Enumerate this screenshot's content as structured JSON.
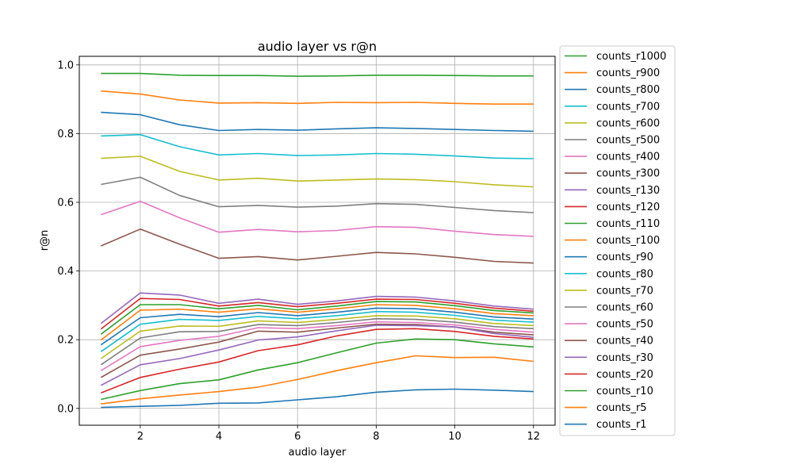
{
  "chart_data": {
    "type": "line",
    "title": "audio layer vs r@n",
    "xlabel": "audio layer",
    "ylabel": "r@n",
    "xlim": [
      0.45,
      12.55
    ],
    "ylim": [
      -0.049,
      1.025
    ],
    "xticks": [
      2,
      4,
      6,
      8,
      10,
      12
    ],
    "xtick_labels": [
      "2",
      "4",
      "6",
      "8",
      "10",
      "12"
    ],
    "yticks": [
      0.0,
      0.2,
      0.4,
      0.6,
      0.8,
      1.0
    ],
    "ytick_labels": [
      "0.0",
      "0.2",
      "0.4",
      "0.6",
      "0.8",
      "1.0"
    ],
    "grid": true,
    "legend_position": "outside-right",
    "x": [
      1,
      2,
      3,
      4,
      5,
      6,
      7,
      8,
      9,
      10,
      11,
      12
    ],
    "series": [
      {
        "name": "counts_r1000",
        "color": "#2ca02c",
        "values": [
          0.975,
          0.975,
          0.97,
          0.969,
          0.969,
          0.967,
          0.968,
          0.97,
          0.97,
          0.969,
          0.968,
          0.968
        ]
      },
      {
        "name": "counts_r900",
        "color": "#ff7f0e",
        "values": [
          0.924,
          0.915,
          0.898,
          0.889,
          0.89,
          0.888,
          0.891,
          0.89,
          0.891,
          0.888,
          0.886,
          0.886
        ]
      },
      {
        "name": "counts_r800",
        "color": "#1f77b4",
        "values": [
          0.862,
          0.855,
          0.826,
          0.809,
          0.812,
          0.81,
          0.814,
          0.817,
          0.815,
          0.812,
          0.809,
          0.807
        ]
      },
      {
        "name": "counts_r700",
        "color": "#17becf",
        "values": [
          0.793,
          0.797,
          0.762,
          0.738,
          0.742,
          0.736,
          0.738,
          0.742,
          0.74,
          0.735,
          0.729,
          0.727
        ]
      },
      {
        "name": "counts_r600",
        "color": "#bcbd22",
        "values": [
          0.728,
          0.734,
          0.69,
          0.665,
          0.67,
          0.662,
          0.665,
          0.668,
          0.666,
          0.66,
          0.651,
          0.645
        ]
      },
      {
        "name": "counts_r500",
        "color": "#7f7f7f",
        "values": [
          0.652,
          0.673,
          0.62,
          0.587,
          0.591,
          0.586,
          0.589,
          0.596,
          0.594,
          0.585,
          0.576,
          0.57
        ]
      },
      {
        "name": "counts_r400",
        "color": "#e377c2",
        "values": [
          0.564,
          0.603,
          0.555,
          0.513,
          0.521,
          0.514,
          0.518,
          0.529,
          0.527,
          0.516,
          0.506,
          0.501
        ]
      },
      {
        "name": "counts_r300",
        "color": "#8c564b",
        "values": [
          0.473,
          0.522,
          0.478,
          0.437,
          0.442,
          0.432,
          0.443,
          0.454,
          0.45,
          0.44,
          0.428,
          0.423
        ]
      },
      {
        "name": "counts_r130",
        "color": "#9467bd",
        "values": [
          0.247,
          0.336,
          0.33,
          0.306,
          0.318,
          0.303,
          0.313,
          0.326,
          0.324,
          0.313,
          0.298,
          0.289
        ]
      },
      {
        "name": "counts_r120",
        "color": "#d62728",
        "values": [
          0.231,
          0.32,
          0.317,
          0.298,
          0.308,
          0.296,
          0.306,
          0.318,
          0.317,
          0.306,
          0.292,
          0.283
        ]
      },
      {
        "name": "counts_r110",
        "color": "#2ca02c",
        "values": [
          0.216,
          0.302,
          0.302,
          0.29,
          0.3,
          0.287,
          0.298,
          0.311,
          0.31,
          0.299,
          0.285,
          0.278
        ]
      },
      {
        "name": "counts_r100",
        "color": "#ff7f0e",
        "values": [
          0.199,
          0.286,
          0.289,
          0.28,
          0.29,
          0.28,
          0.29,
          0.302,
          0.3,
          0.29,
          0.276,
          0.27
        ]
      },
      {
        "name": "counts_r90",
        "color": "#1f77b4",
        "values": [
          0.185,
          0.264,
          0.274,
          0.267,
          0.279,
          0.27,
          0.28,
          0.292,
          0.29,
          0.28,
          0.266,
          0.26
        ]
      },
      {
        "name": "counts_r80",
        "color": "#17becf",
        "values": [
          0.165,
          0.245,
          0.259,
          0.256,
          0.268,
          0.261,
          0.27,
          0.282,
          0.28,
          0.271,
          0.257,
          0.251
        ]
      },
      {
        "name": "counts_r70",
        "color": "#bcbd22",
        "values": [
          0.145,
          0.225,
          0.24,
          0.239,
          0.255,
          0.25,
          0.259,
          0.27,
          0.269,
          0.261,
          0.247,
          0.241
        ]
      },
      {
        "name": "counts_r60",
        "color": "#7f7f7f",
        "values": [
          0.127,
          0.205,
          0.223,
          0.224,
          0.244,
          0.241,
          0.25,
          0.261,
          0.259,
          0.251,
          0.238,
          0.232
        ]
      },
      {
        "name": "counts_r50",
        "color": "#e377c2",
        "values": [
          0.11,
          0.18,
          0.198,
          0.21,
          0.235,
          0.232,
          0.241,
          0.252,
          0.25,
          0.243,
          0.23,
          0.222
        ]
      },
      {
        "name": "counts_r40",
        "color": "#8c564b",
        "values": [
          0.09,
          0.155,
          0.173,
          0.193,
          0.225,
          0.222,
          0.234,
          0.245,
          0.244,
          0.237,
          0.222,
          0.214
        ]
      },
      {
        "name": "counts_r30",
        "color": "#9467bd",
        "values": [
          0.067,
          0.127,
          0.145,
          0.17,
          0.199,
          0.208,
          0.226,
          0.242,
          0.241,
          0.237,
          0.218,
          0.207
        ]
      },
      {
        "name": "counts_r20",
        "color": "#d62728",
        "values": [
          0.045,
          0.09,
          0.114,
          0.135,
          0.168,
          0.185,
          0.211,
          0.23,
          0.232,
          0.224,
          0.21,
          0.202
        ]
      },
      {
        "name": "counts_r10",
        "color": "#2ca02c",
        "values": [
          0.026,
          0.052,
          0.072,
          0.083,
          0.112,
          0.133,
          0.162,
          0.19,
          0.202,
          0.2,
          0.188,
          0.179
        ]
      },
      {
        "name": "counts_r5",
        "color": "#ff7f0e",
        "values": [
          0.013,
          0.028,
          0.039,
          0.049,
          0.062,
          0.084,
          0.11,
          0.133,
          0.153,
          0.148,
          0.149,
          0.137
        ]
      },
      {
        "name": "counts_r1",
        "color": "#1f77b4",
        "values": [
          0.003,
          0.006,
          0.009,
          0.015,
          0.016,
          0.025,
          0.034,
          0.047,
          0.054,
          0.056,
          0.053,
          0.049
        ]
      }
    ]
  }
}
